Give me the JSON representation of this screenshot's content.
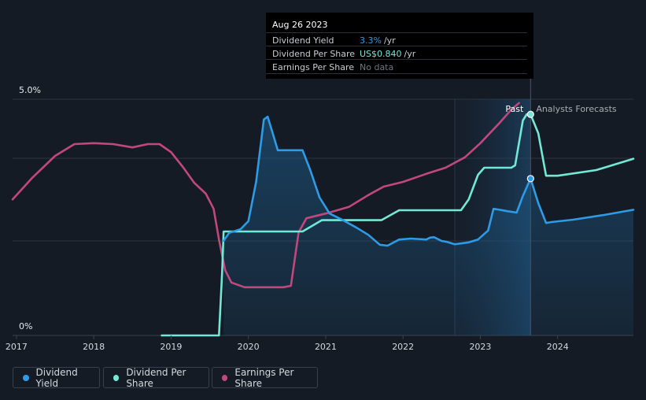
{
  "chart_data": {
    "type": "line",
    "y_axis": {
      "top_label": "5.0%",
      "bottom_label": "0%"
    },
    "x_ticks": [
      "2017",
      "2018",
      "2019",
      "2020",
      "2021",
      "2022",
      "2023",
      "2024"
    ],
    "x_range": [
      2016.95,
      2024.98
    ],
    "y_range": [
      0,
      5.0
    ],
    "forecast_start": 2023.65,
    "highlight_start": 2022.67,
    "region_labels": {
      "past": "Past",
      "forecast": "Analysts Forecasts"
    },
    "series": [
      {
        "name": "Dividend Yield",
        "color": "#2e9be6",
        "filled": true,
        "points": [
          [
            2019.68,
            2.0
          ],
          [
            2019.75,
            2.17
          ],
          [
            2019.9,
            2.25
          ],
          [
            2020.0,
            2.42
          ],
          [
            2020.1,
            3.25
          ],
          [
            2020.2,
            4.57
          ],
          [
            2020.25,
            4.63
          ],
          [
            2020.32,
            4.25
          ],
          [
            2020.38,
            3.92
          ],
          [
            2020.5,
            3.92
          ],
          [
            2020.7,
            3.92
          ],
          [
            2020.8,
            3.5
          ],
          [
            2020.92,
            2.92
          ],
          [
            2021.05,
            2.58
          ],
          [
            2021.2,
            2.46
          ],
          [
            2021.4,
            2.28
          ],
          [
            2021.55,
            2.13
          ],
          [
            2021.7,
            1.92
          ],
          [
            2021.8,
            1.9
          ],
          [
            2021.95,
            2.03
          ],
          [
            2022.1,
            2.05
          ],
          [
            2022.3,
            2.03
          ],
          [
            2022.35,
            2.07
          ],
          [
            2022.4,
            2.08
          ],
          [
            2022.5,
            2.0
          ],
          [
            2022.57,
            1.98
          ],
          [
            2022.67,
            1.93
          ],
          [
            2022.85,
            1.97
          ],
          [
            2022.97,
            2.03
          ],
          [
            2023.1,
            2.22
          ],
          [
            2023.17,
            2.68
          ],
          [
            2023.25,
            2.66
          ],
          [
            2023.35,
            2.63
          ],
          [
            2023.47,
            2.6
          ],
          [
            2023.55,
            2.95
          ],
          [
            2023.65,
            3.32
          ],
          [
            2023.75,
            2.8
          ],
          [
            2023.85,
            2.38
          ],
          [
            2023.92,
            2.4
          ],
          [
            2024.2,
            2.45
          ],
          [
            2024.6,
            2.55
          ],
          [
            2024.98,
            2.66
          ]
        ]
      },
      {
        "name": "Dividend Per Share",
        "color": "#71e9d6",
        "filled": false,
        "points": [
          [
            2018.88,
            0.0
          ],
          [
            2019.62,
            0.0
          ],
          [
            2019.66,
            1.33
          ],
          [
            2019.68,
            2.2
          ],
          [
            2020.0,
            2.2
          ],
          [
            2020.7,
            2.2
          ],
          [
            2020.95,
            2.44
          ],
          [
            2021.3,
            2.44
          ],
          [
            2021.72,
            2.44
          ],
          [
            2021.95,
            2.65
          ],
          [
            2022.4,
            2.65
          ],
          [
            2022.75,
            2.65
          ],
          [
            2022.85,
            2.88
          ],
          [
            2022.97,
            3.4
          ],
          [
            2023.05,
            3.55
          ],
          [
            2023.4,
            3.55
          ],
          [
            2023.45,
            3.6
          ],
          [
            2023.55,
            4.55
          ],
          [
            2023.6,
            4.68
          ],
          [
            2023.65,
            4.68
          ],
          [
            2023.75,
            4.28
          ],
          [
            2023.85,
            3.38
          ],
          [
            2024.0,
            3.38
          ],
          [
            2024.5,
            3.5
          ],
          [
            2024.98,
            3.74
          ]
        ]
      },
      {
        "name": "Earnings Per Share",
        "color": "#c1487e",
        "filled": false,
        "points": [
          [
            2016.95,
            2.88
          ],
          [
            2017.2,
            3.33
          ],
          [
            2017.5,
            3.8
          ],
          [
            2017.75,
            4.05
          ],
          [
            2018.0,
            4.07
          ],
          [
            2018.25,
            4.05
          ],
          [
            2018.5,
            3.98
          ],
          [
            2018.7,
            4.05
          ],
          [
            2018.85,
            4.05
          ],
          [
            2019.0,
            3.88
          ],
          [
            2019.15,
            3.57
          ],
          [
            2019.3,
            3.23
          ],
          [
            2019.45,
            3.0
          ],
          [
            2019.55,
            2.68
          ],
          [
            2019.62,
            2.03
          ],
          [
            2019.7,
            1.38
          ],
          [
            2019.78,
            1.12
          ],
          [
            2019.95,
            1.02
          ],
          [
            2020.2,
            1.02
          ],
          [
            2020.45,
            1.02
          ],
          [
            2020.55,
            1.05
          ],
          [
            2020.65,
            2.18
          ],
          [
            2020.75,
            2.48
          ],
          [
            2021.0,
            2.58
          ],
          [
            2021.3,
            2.72
          ],
          [
            2021.55,
            2.97
          ],
          [
            2021.75,
            3.15
          ],
          [
            2022.0,
            3.25
          ],
          [
            2022.3,
            3.42
          ],
          [
            2022.55,
            3.55
          ],
          [
            2022.8,
            3.77
          ],
          [
            2023.0,
            4.07
          ],
          [
            2023.25,
            4.5
          ],
          [
            2023.4,
            4.78
          ],
          [
            2023.5,
            4.92
          ]
        ]
      }
    ],
    "markers": [
      {
        "series": "Dividend Per Share",
        "x": 2023.65,
        "y": 4.68
      },
      {
        "series": "Dividend Yield",
        "x": 2023.65,
        "y": 3.32
      }
    ]
  },
  "tooltip": {
    "date": "Aug 26 2023",
    "rows": [
      {
        "label": "Dividend Yield",
        "value": "3.3%",
        "unit": "/yr"
      },
      {
        "label": "Dividend Per Share",
        "value": "US$0.840",
        "unit": "/yr"
      },
      {
        "label": "Earnings Per Share",
        "value": "No data"
      }
    ]
  },
  "legend": [
    {
      "label": "Dividend Yield",
      "color": "#2e9be6"
    },
    {
      "label": "Dividend Per Share",
      "color": "#71e9d6"
    },
    {
      "label": "Earnings Per Share",
      "color": "#c1487e"
    }
  ]
}
